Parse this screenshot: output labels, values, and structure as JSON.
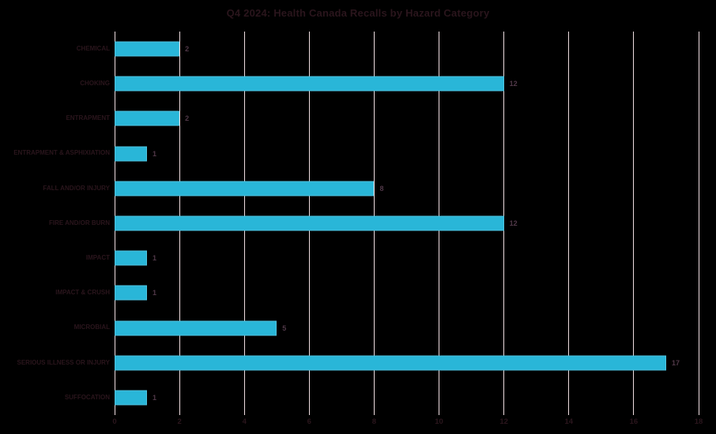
{
  "chart_data": {
    "type": "bar",
    "orientation": "horizontal",
    "title": "Q4 2024: Health Canada Recalls by Hazard Category",
    "categories": [
      "CHEMICAL",
      "CHOKING",
      "ENTRAPMENT",
      "ENTRAPMENT & ASPHIXIATION",
      "FALL AND/OR INJURY",
      "FIRE AND/OR BURN",
      "IMPACT",
      "IMPACT & CRUSH",
      "MICROBIAL",
      "SERIOUS ILLNESS OR INJURY",
      "SUFFOCATION"
    ],
    "values": [
      2,
      12,
      2,
      1,
      8,
      12,
      1,
      1,
      5,
      17,
      1
    ],
    "data_labels": [
      2,
      12,
      2,
      1,
      8,
      12,
      1,
      1,
      5,
      17,
      1
    ],
    "x_ticks": [
      0,
      2,
      4,
      6,
      8,
      10,
      12,
      14,
      16,
      18
    ],
    "xlim": [
      0,
      18
    ],
    "xlabel": "",
    "ylabel": "",
    "grid": "vertical",
    "legend": "none"
  },
  "colors": {
    "background": "#000000",
    "bar_fill": "#29B6D8",
    "bar_edge": "#4FC3DF",
    "gridline": "#EDDCDF",
    "title_text": "#2A151C",
    "category_text": "#2A151C",
    "tick_text": "#2A151C",
    "value_text": "#503848"
  }
}
